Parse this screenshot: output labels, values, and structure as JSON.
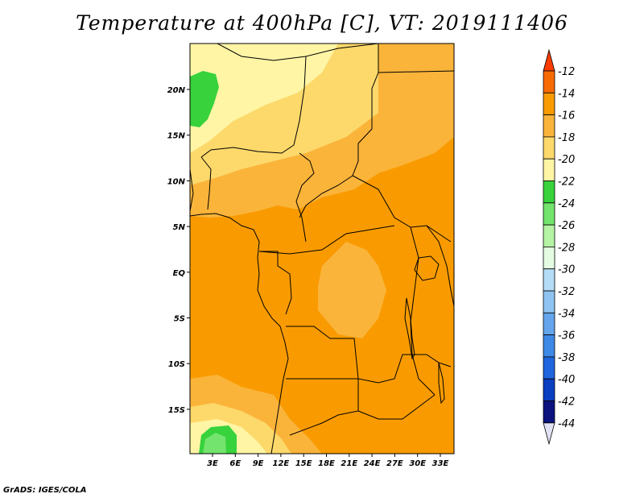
{
  "title": "Temperature at 400hPa [C], VT: 2019111406",
  "credit": "GrADS: IGES/COLA",
  "map": {
    "lat_labels": [
      "20N",
      "15N",
      "10N",
      "5N",
      "EQ",
      "5S",
      "10S",
      "15S"
    ],
    "lon_labels": [
      "3E",
      "6E",
      "9E",
      "12E",
      "15E",
      "18E",
      "21E",
      "24E",
      "27E",
      "30E",
      "33E"
    ]
  },
  "colorbar": {
    "labels": [
      "-12",
      "-14",
      "-16",
      "-18",
      "-20",
      "-22",
      "-24",
      "-26",
      "-28",
      "-30",
      "-32",
      "-34",
      "-36",
      "-38",
      "-40",
      "-42",
      "-44"
    ],
    "colors": [
      "#fa3c00",
      "#f76a00",
      "#f99b00",
      "#fbb43a",
      "#fdd96b",
      "#fff5a5",
      "#37d23c",
      "#73e46d",
      "#b4f4a4",
      "#e4fde2",
      "#b5dcf7",
      "#8fc4f2",
      "#64a5ec",
      "#3e88e6",
      "#1f65dd",
      "#0a3fc2",
      "#0c137f",
      "#e2e2f5"
    ]
  }
}
